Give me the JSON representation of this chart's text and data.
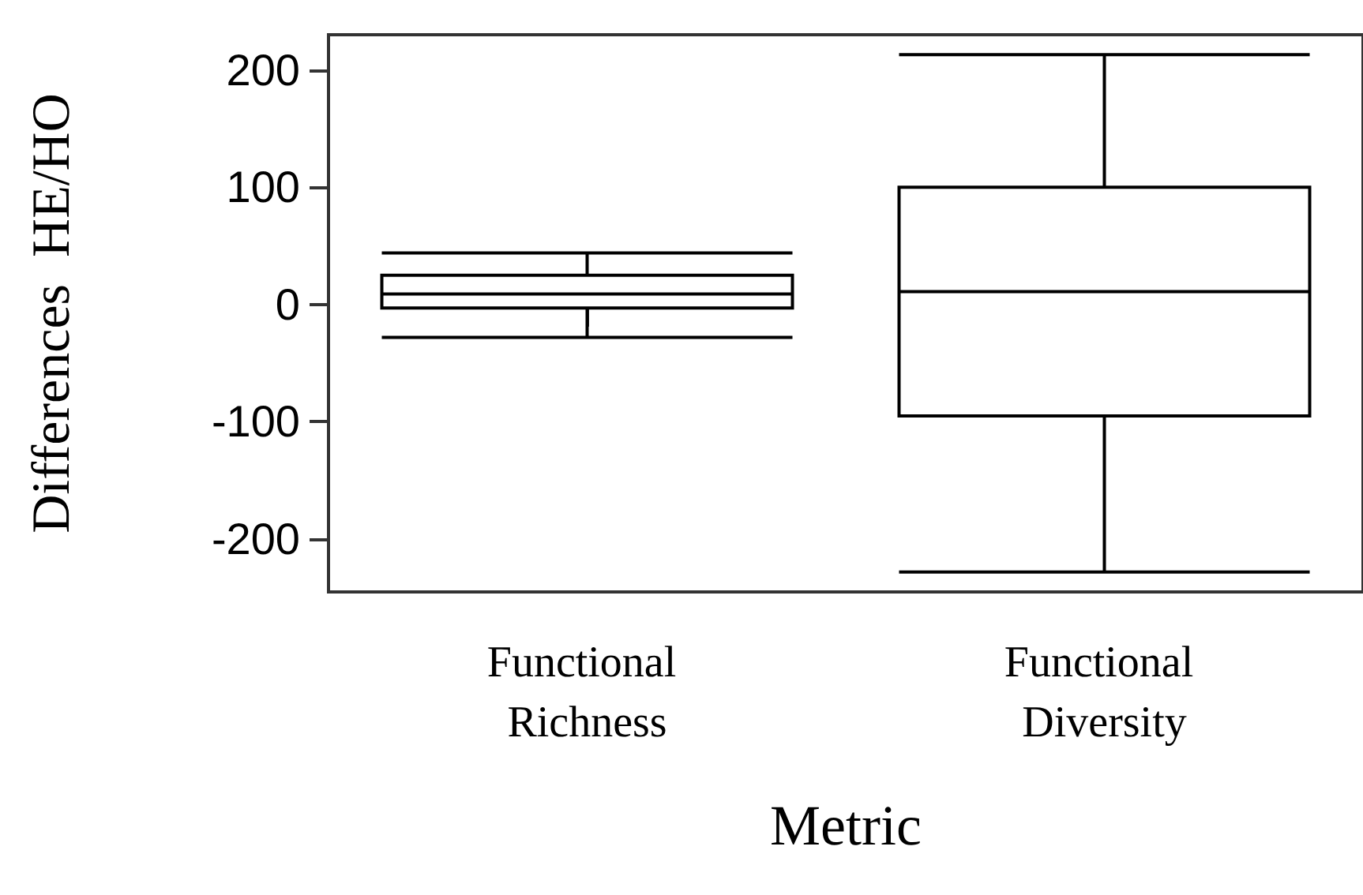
{
  "chart_data": {
    "type": "box",
    "xlabel": "Metric",
    "ylabel": "Differences  HE/HO",
    "categories": [
      "Functional Richness",
      "Functional Diversity"
    ],
    "boxes": [
      {
        "low": -28,
        "q1": -3,
        "median": 9,
        "q3": 25,
        "high": 44
      },
      {
        "low": -228,
        "q1": -95,
        "median": 11,
        "q3": 100,
        "high": 213
      }
    ],
    "ylim": [
      -245,
      230
    ],
    "yticks": [
      -200,
      -100,
      0,
      100,
      200
    ],
    "grid": false
  }
}
